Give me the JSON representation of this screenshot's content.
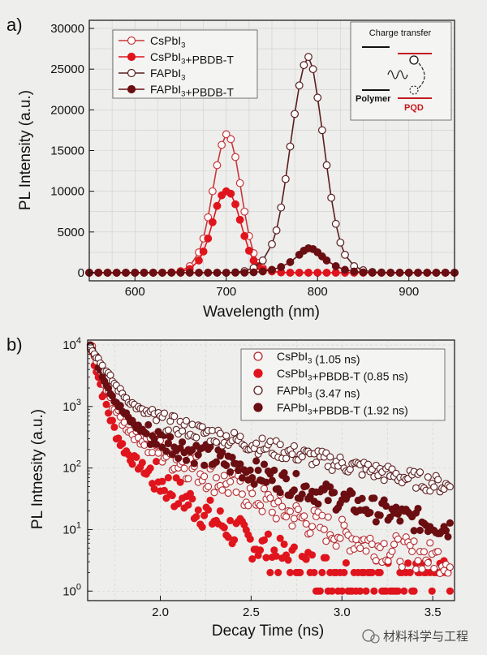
{
  "figure": {
    "watermark": "材料科学与工程"
  },
  "colors": {
    "cs": "#c8383a",
    "cs_pbdbt": "#e0141c",
    "fa": "#5a1e1e",
    "fa_pbdbt": "#6a0e12",
    "grid": "#cfcfcf"
  },
  "chart_data": [
    {
      "panel_label": "a)",
      "type": "line",
      "xlabel": "Wavelength (nm)",
      "ylabel": "PL Intensity (a.u.)",
      "xlim": [
        550,
        950
      ],
      "ylim": [
        -1000,
        31000
      ],
      "xticks": [
        600,
        700,
        800,
        900
      ],
      "yticks": [
        0,
        5000,
        10000,
        15000,
        20000,
        25000,
        30000
      ],
      "grid": true,
      "legend": "top-left",
      "series": [
        {
          "name": "CsPbI3",
          "color": "#c8383a",
          "marker": "open",
          "points": [
            [
              550,
              0
            ],
            [
              560,
              0
            ],
            [
              570,
              0
            ],
            [
              580,
              0
            ],
            [
              590,
              0
            ],
            [
              600,
              0
            ],
            [
              610,
              0
            ],
            [
              620,
              0
            ],
            [
              630,
              0
            ],
            [
              640,
              50
            ],
            [
              650,
              200
            ],
            [
              660,
              800
            ],
            [
              670,
              2500
            ],
            [
              675,
              4200
            ],
            [
              680,
              6800
            ],
            [
              685,
              10000
            ],
            [
              690,
              13200
            ],
            [
              695,
              15700
            ],
            [
              700,
              17000
            ],
            [
              705,
              16400
            ],
            [
              710,
              14200
            ],
            [
              715,
              11000
            ],
            [
              720,
              7500
            ],
            [
              725,
              4500
            ],
            [
              730,
              2400
            ],
            [
              735,
              1200
            ],
            [
              740,
              600
            ],
            [
              750,
              200
            ],
            [
              760,
              50
            ],
            [
              770,
              0
            ],
            [
              780,
              0
            ],
            [
              790,
              0
            ],
            [
              800,
              0
            ],
            [
              810,
              0
            ],
            [
              820,
              0
            ],
            [
              830,
              0
            ],
            [
              840,
              0
            ],
            [
              850,
              0
            ],
            [
              860,
              0
            ],
            [
              870,
              0
            ],
            [
              880,
              0
            ],
            [
              890,
              0
            ],
            [
              900,
              0
            ],
            [
              910,
              0
            ],
            [
              920,
              0
            ],
            [
              930,
              0
            ],
            [
              940,
              0
            ],
            [
              950,
              0
            ]
          ]
        },
        {
          "name": "CsPbI3+PBDB-T",
          "color": "#e0141c",
          "marker": "filled",
          "points": [
            [
              550,
              0
            ],
            [
              560,
              0
            ],
            [
              570,
              0
            ],
            [
              580,
              0
            ],
            [
              590,
              0
            ],
            [
              600,
              0
            ],
            [
              610,
              0
            ],
            [
              620,
              0
            ],
            [
              630,
              0
            ],
            [
              640,
              30
            ],
            [
              650,
              120
            ],
            [
              660,
              450
            ],
            [
              670,
              1500
            ],
            [
              675,
              2600
            ],
            [
              680,
              4200
            ],
            [
              685,
              6200
            ],
            [
              690,
              8200
            ],
            [
              695,
              9500
            ],
            [
              700,
              10000
            ],
            [
              705,
              9700
            ],
            [
              710,
              8400
            ],
            [
              715,
              6500
            ],
            [
              720,
              4500
            ],
            [
              725,
              2700
            ],
            [
              730,
              1500
            ],
            [
              735,
              800
            ],
            [
              740,
              400
            ],
            [
              750,
              150
            ],
            [
              760,
              30
            ],
            [
              770,
              0
            ],
            [
              780,
              0
            ],
            [
              790,
              0
            ],
            [
              800,
              0
            ],
            [
              810,
              0
            ],
            [
              820,
              0
            ],
            [
              830,
              0
            ],
            [
              840,
              0
            ],
            [
              850,
              0
            ],
            [
              860,
              0
            ],
            [
              870,
              0
            ],
            [
              880,
              0
            ],
            [
              890,
              0
            ],
            [
              900,
              0
            ],
            [
              910,
              0
            ],
            [
              920,
              0
            ],
            [
              930,
              0
            ],
            [
              940,
              0
            ],
            [
              950,
              0
            ]
          ]
        },
        {
          "name": "FAPbI3",
          "color": "#5a1e1e",
          "marker": "open",
          "points": [
            [
              550,
              0
            ],
            [
              560,
              0
            ],
            [
              570,
              0
            ],
            [
              580,
              0
            ],
            [
              590,
              0
            ],
            [
              600,
              0
            ],
            [
              610,
              0
            ],
            [
              620,
              0
            ],
            [
              630,
              0
            ],
            [
              640,
              0
            ],
            [
              650,
              0
            ],
            [
              660,
              0
            ],
            [
              670,
              0
            ],
            [
              680,
              0
            ],
            [
              690,
              0
            ],
            [
              700,
              0
            ],
            [
              710,
              50
            ],
            [
              720,
              200
            ],
            [
              730,
              600
            ],
            [
              740,
              1500
            ],
            [
              750,
              3500
            ],
            [
              755,
              5200
            ],
            [
              760,
              8000
            ],
            [
              765,
              11500
            ],
            [
              770,
              15500
            ],
            [
              775,
              19500
            ],
            [
              780,
              23000
            ],
            [
              785,
              25500
            ],
            [
              790,
              26500
            ],
            [
              795,
              25000
            ],
            [
              800,
              21500
            ],
            [
              805,
              17500
            ],
            [
              810,
              13200
            ],
            [
              815,
              9200
            ],
            [
              820,
              6000
            ],
            [
              825,
              3700
            ],
            [
              830,
              2200
            ],
            [
              840,
              800
            ],
            [
              850,
              300
            ],
            [
              860,
              100
            ],
            [
              870,
              30
            ],
            [
              880,
              0
            ],
            [
              890,
              0
            ],
            [
              900,
              0
            ],
            [
              910,
              0
            ],
            [
              920,
              0
            ],
            [
              930,
              0
            ],
            [
              940,
              0
            ],
            [
              950,
              0
            ]
          ]
        },
        {
          "name": "FAPbI3+PBDB-T",
          "color": "#6a0e12",
          "marker": "filled",
          "points": [
            [
              550,
              0
            ],
            [
              560,
              0
            ],
            [
              570,
              0
            ],
            [
              580,
              0
            ],
            [
              590,
              0
            ],
            [
              600,
              0
            ],
            [
              610,
              0
            ],
            [
              620,
              0
            ],
            [
              630,
              0
            ],
            [
              640,
              0
            ],
            [
              650,
              0
            ],
            [
              660,
              0
            ],
            [
              670,
              0
            ],
            [
              680,
              0
            ],
            [
              690,
              0
            ],
            [
              700,
              0
            ],
            [
              710,
              0
            ],
            [
              720,
              0
            ],
            [
              730,
              50
            ],
            [
              740,
              150
            ],
            [
              750,
              350
            ],
            [
              760,
              700
            ],
            [
              770,
              1300
            ],
            [
              780,
              2200
            ],
            [
              785,
              2700
            ],
            [
              790,
              3000
            ],
            [
              795,
              2900
            ],
            [
              800,
              2500
            ],
            [
              805,
              2000
            ],
            [
              810,
              1500
            ],
            [
              820,
              800
            ],
            [
              830,
              350
            ],
            [
              840,
              150
            ],
            [
              850,
              50
            ],
            [
              860,
              0
            ],
            [
              870,
              0
            ],
            [
              880,
              0
            ],
            [
              890,
              0
            ],
            [
              900,
              0
            ],
            [
              910,
              0
            ],
            [
              920,
              0
            ],
            [
              930,
              0
            ],
            [
              940,
              0
            ],
            [
              950,
              0
            ]
          ]
        }
      ],
      "inset": {
        "title": "Charge transfer",
        "left_label": "Polymer",
        "right_label": "PQD"
      }
    },
    {
      "panel_label": "b)",
      "type": "scatter",
      "xlabel": "Decay Time (ns)",
      "ylabel": "PL Intnesity (a.u.)",
      "xlim": [
        1.6,
        3.62
      ],
      "ylim": [
        0.7,
        12000
      ],
      "yscale": "log",
      "xticks": [
        2.0,
        2.5,
        3.0,
        3.5
      ],
      "yticks": [
        1,
        10,
        100,
        1000,
        10000
      ],
      "ytick_labels": [
        "10^0",
        "10^1",
        "10^2",
        "10^3",
        "10^4"
      ],
      "grid": true,
      "legend": "top-right",
      "series": [
        {
          "name": "CsPbI3 (1.05 ns)",
          "color": "#b22a2e",
          "marker": "open",
          "tau_ns": 1.05
        },
        {
          "name": "CsPbI3+PBDB-T (0.85 ns)",
          "color": "#e0141c",
          "marker": "filled",
          "tau_ns": 0.85
        },
        {
          "name": "FAPbI3 (3.47 ns)",
          "color": "#5a1e1e",
          "marker": "open",
          "tau_ns": 3.47
        },
        {
          "name": "FAPbI3+PBDB-T (1.92 ns)",
          "color": "#6a0e12",
          "marker": "filled",
          "tau_ns": 1.92
        }
      ]
    }
  ]
}
